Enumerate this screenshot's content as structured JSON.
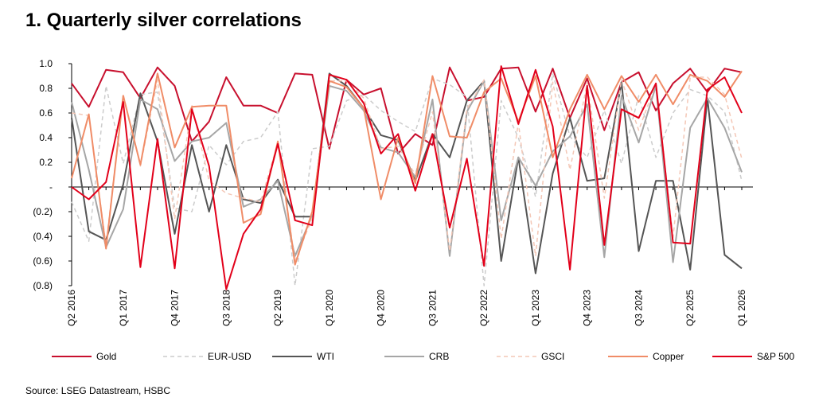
{
  "page": {
    "title": "1. Quarterly silver correlations",
    "source": "Source: LSEG Datastream, HSBC"
  },
  "chart_data": {
    "type": "line",
    "title": "1. Quarterly silver correlations",
    "xlabel": "",
    "ylabel": "",
    "ylim": [
      -0.8,
      1.0
    ],
    "y_ticks": [
      {
        "value": 1.0,
        "label": "1.0"
      },
      {
        "value": 0.8,
        "label": "0.8"
      },
      {
        "value": 0.6,
        "label": "0.6"
      },
      {
        "value": 0.4,
        "label": "0.4"
      },
      {
        "value": 0.2,
        "label": "0.2"
      },
      {
        "value": 0.0,
        "label": "-"
      },
      {
        "value": -0.2,
        "label": "(0.2)"
      },
      {
        "value": -0.4,
        "label": "(0.4)"
      },
      {
        "value": -0.6,
        "label": "(0.6)"
      },
      {
        "value": -0.8,
        "label": "(0.8)"
      }
    ],
    "x_tick_labels": [
      "Q2 2016",
      "Q1 2017",
      "Q4 2017",
      "Q3 2018",
      "Q2 2019",
      "Q1 2020",
      "Q4 2020",
      "Q3 2021",
      "Q2 2022",
      "Q1 2023",
      "Q4 2023",
      "Q3 2024",
      "Q2 2025",
      "Q1 2026"
    ],
    "x_tick_every": 3,
    "x": [
      "Q2 2016",
      "Q3 2016",
      "Q4 2016",
      "Q1 2017",
      "Q2 2017",
      "Q3 2017",
      "Q4 2017",
      "Q1 2018",
      "Q2 2018",
      "Q3 2018",
      "Q4 2018",
      "Q1 2019",
      "Q2 2019",
      "Q3 2019",
      "Q4 2019",
      "Q1 2020",
      "Q2 2020",
      "Q3 2020",
      "Q4 2020",
      "Q1 2021",
      "Q2 2021",
      "Q3 2021",
      "Q4 2021",
      "Q1 2022",
      "Q2 2022",
      "Q3 2022",
      "Q4 2022",
      "Q1 2023",
      "Q2 2023",
      "Q3 2023",
      "Q4 2023",
      "Q1 2024",
      "Q2 2024",
      "Q3 2024",
      "Q4 2024",
      "Q1 2025",
      "Q2 2025",
      "Q3 2025",
      "Q4 2025",
      "Q1 2026"
    ],
    "legend_position": "bottom",
    "grid": false,
    "series": [
      {
        "name": "Gold",
        "color": "#c8102e",
        "dash": "",
        "width": 2,
        "values": [
          0.84,
          0.65,
          0.95,
          0.93,
          0.72,
          0.97,
          0.82,
          0.37,
          0.53,
          0.89,
          0.66,
          0.66,
          0.6,
          0.92,
          0.91,
          0.31,
          0.87,
          0.75,
          0.8,
          0.27,
          0.43,
          0.34,
          0.97,
          0.7,
          0.73,
          0.96,
          0.97,
          0.61,
          0.96,
          0.56,
          0.88,
          0.46,
          0.85,
          0.93,
          0.62,
          0.84,
          0.96,
          0.77,
          0.96,
          0.93
        ]
      },
      {
        "name": "EUR-USD",
        "color": "#cccccc",
        "dash": "5,4",
        "width": 1.5,
        "values": [
          -0.12,
          -0.44,
          0.82,
          0.19,
          0.75,
          0.77,
          -0.17,
          -0.2,
          0.34,
          0.18,
          0.37,
          0.4,
          0.61,
          -0.8,
          0.31,
          0.33,
          0.7,
          0.75,
          0.62,
          0.53,
          0.45,
          0.88,
          0.83,
          0.73,
          -0.8,
          0.7,
          0.4,
          -0.08,
          0.92,
          0.41,
          0.24,
          0.62,
          0.19,
          0.74,
          0.24,
          0.6,
          0.79,
          0.74,
          0.61,
          0.05
        ]
      },
      {
        "name": "WTI",
        "color": "#555555",
        "dash": "",
        "width": 2,
        "values": [
          0.56,
          -0.36,
          -0.43,
          0.02,
          0.76,
          0.37,
          -0.38,
          0.34,
          -0.2,
          0.34,
          -0.1,
          -0.13,
          0.06,
          -0.24,
          -0.24,
          0.92,
          0.82,
          0.64,
          0.42,
          0.38,
          0.05,
          0.43,
          0.24,
          0.7,
          0.86,
          -0.6,
          0.24,
          -0.7,
          0.11,
          0.56,
          0.05,
          0.07,
          0.85,
          -0.52,
          0.05,
          0.05,
          -0.67,
          0.72,
          -0.55,
          -0.66
        ]
      },
      {
        "name": "CRB",
        "color": "#a6a6a6",
        "dash": "",
        "width": 2,
        "values": [
          0.69,
          0.14,
          -0.49,
          -0.18,
          0.71,
          0.63,
          0.21,
          0.37,
          0.4,
          0.52,
          -0.16,
          -0.1,
          0.05,
          -0.56,
          -0.23,
          0.82,
          0.78,
          0.62,
          0.32,
          0.28,
          0.08,
          0.71,
          -0.56,
          0.61,
          0.86,
          -0.27,
          0.24,
          0.01,
          0.29,
          0.41,
          0.67,
          -0.57,
          0.74,
          0.36,
          0.82,
          -0.61,
          0.48,
          0.72,
          0.48,
          0.12
        ]
      },
      {
        "name": "GSCI",
        "color": "#f4c7b6",
        "dash": "5,4",
        "width": 1.5,
        "values": [
          0.6,
          0.58,
          -0.47,
          0.75,
          0.17,
          0.87,
          -0.26,
          0.66,
          0.05,
          -0.05,
          -0.09,
          -0.12,
          0.36,
          -0.6,
          -0.25,
          0.86,
          0.86,
          0.72,
          0.31,
          0.33,
          0.1,
          0.61,
          -0.52,
          0.63,
          0.87,
          -0.42,
          0.52,
          -0.56,
          0.85,
          0.14,
          0.84,
          -0.09,
          0.87,
          0.46,
          0.84,
          -0.41,
          0.89,
          0.89,
          0.75,
          0.23
        ]
      },
      {
        "name": "Copper",
        "color": "#f08c67",
        "dash": "",
        "width": 2,
        "values": [
          0.07,
          0.59,
          -0.5,
          0.74,
          0.18,
          0.92,
          0.32,
          0.65,
          0.66,
          0.66,
          -0.29,
          -0.22,
          0.37,
          -0.63,
          -0.2,
          0.86,
          0.81,
          0.64,
          -0.1,
          0.4,
          0.03,
          0.9,
          0.41,
          0.4,
          0.77,
          0.88,
          0.53,
          0.9,
          0.24,
          0.63,
          0.91,
          0.63,
          0.9,
          0.69,
          0.91,
          0.67,
          0.91,
          0.86,
          0.73,
          0.94
        ]
      },
      {
        "name": "S&P 500",
        "color": "#e2001a",
        "dash": "",
        "width": 2,
        "values": [
          0.0,
          -0.1,
          0.04,
          0.69,
          -0.65,
          0.39,
          -0.66,
          0.63,
          0.17,
          -0.83,
          -0.38,
          -0.18,
          0.35,
          -0.27,
          -0.31,
          0.91,
          0.87,
          0.68,
          0.27,
          0.43,
          -0.03,
          0.43,
          -0.33,
          0.23,
          -0.64,
          0.98,
          0.51,
          0.95,
          0.49,
          -0.67,
          0.82,
          -0.47,
          0.63,
          0.56,
          0.84,
          -0.45,
          -0.46,
          0.79,
          0.89,
          0.6
        ]
      }
    ]
  }
}
